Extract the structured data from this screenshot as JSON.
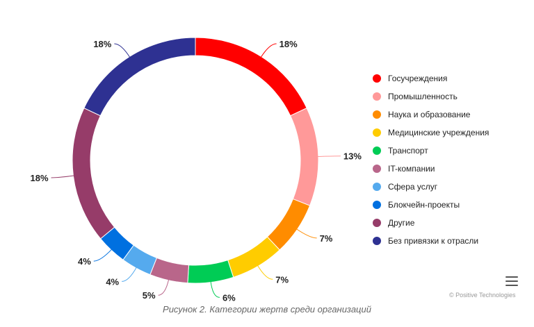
{
  "chart_data": {
    "type": "pie",
    "subtype": "donut",
    "categories": [
      "Госучреждения",
      "Промышленность",
      "Наука и образование",
      "Медицинские учреждения",
      "Транспорт",
      "IT-компании",
      "Сфера услуг",
      "Блокчейн-проекты",
      "Другие",
      "Без привязки к отрасли"
    ],
    "values": [
      18,
      13,
      7,
      7,
      6,
      5,
      4,
      4,
      18,
      18
    ],
    "labels": [
      "18%",
      "13%",
      "7%",
      "7%",
      "6%",
      "5%",
      "4%",
      "4%",
      "18%",
      "18%"
    ],
    "colors": [
      "#ff0000",
      "#ff9999",
      "#ff8c00",
      "#ffcc00",
      "#00cc55",
      "#b9668a",
      "#55aaee",
      "#0070e0",
      "#963c69",
      "#2e3192"
    ],
    "legend_position": "right"
  },
  "legend": {
    "items": [
      {
        "label": "Госучреждения",
        "color": "#ff0000"
      },
      {
        "label": "Промышленность",
        "color": "#ff9999"
      },
      {
        "label": "Наука и образование",
        "color": "#ff8c00"
      },
      {
        "label": "Медицинские учреждения",
        "color": "#ffcc00"
      },
      {
        "label": "Транспорт",
        "color": "#00cc55"
      },
      {
        "label": "IT-компании",
        "color": "#b9668a"
      },
      {
        "label": "Сфера услуг",
        "color": "#55aaee"
      },
      {
        "label": "Блокчейн-проекты",
        "color": "#0070e0"
      },
      {
        "label": "Другие",
        "color": "#963c69"
      },
      {
        "label": "Без привязки к отрасли",
        "color": "#2e3192"
      }
    ]
  },
  "credits": "© Positive Technologies",
  "caption": "Рисунок 2. Категории жертв среди организаций",
  "menu_icon": "hamburger-menu-icon"
}
